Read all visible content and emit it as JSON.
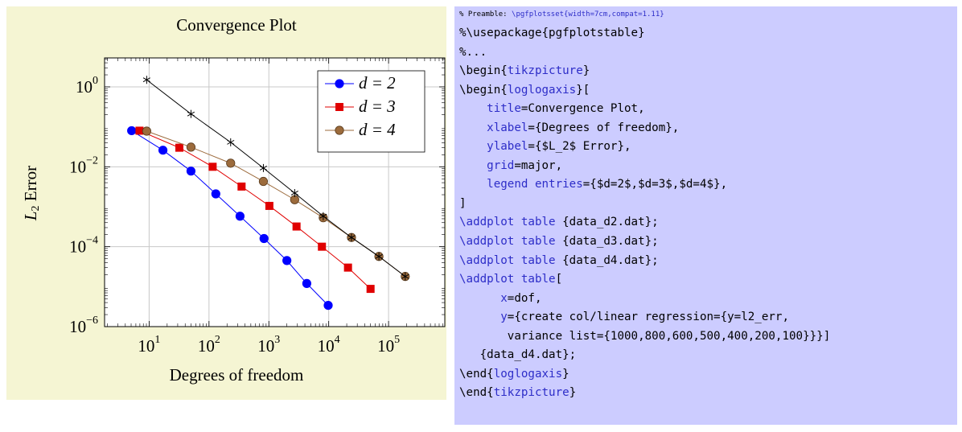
{
  "chart_data": {
    "type": "line",
    "title": "Convergence Plot",
    "xlabel": "Degrees of freedom",
    "ylabel": [
      "L",
      "2",
      " Error"
    ],
    "xlog": true,
    "ylog": true,
    "grid": "major",
    "xlim": [
      1.8,
      870000
    ],
    "ylim": [
      1e-06,
      5.3
    ],
    "xticks": [
      {
        "value": 10,
        "label": "10",
        "exponent": "1"
      },
      {
        "value": 100,
        "label": "10",
        "exponent": "2"
      },
      {
        "value": 1000,
        "label": "10",
        "exponent": "3"
      },
      {
        "value": 10000,
        "label": "10",
        "exponent": "4"
      },
      {
        "value": 100000,
        "label": "10",
        "exponent": "5"
      }
    ],
    "yticks": [
      {
        "value": 1e-06,
        "label": "10",
        "exponent": "−6"
      },
      {
        "value": 0.0001,
        "label": "10",
        "exponent": "−4"
      },
      {
        "value": 0.01,
        "label": "10",
        "exponent": "−2"
      },
      {
        "value": 1,
        "label": "10",
        "exponent": "0"
      }
    ],
    "legend": "top-right",
    "series": [
      {
        "name": "d = 2",
        "color": "#0000ff",
        "marker": "circle",
        "x": [
          5.1,
          17,
          50,
          130,
          330,
          830,
          2000,
          4300,
          9800
        ],
        "values": [
          0.08,
          0.026,
          0.0078,
          0.0021,
          0.00058,
          0.00016,
          4.5e-05,
          1.2e-05,
          3.4e-06
        ]
      },
      {
        "name": "d = 3",
        "color": "#e00000",
        "marker": "square",
        "x": [
          6.9,
          32,
          115,
          350,
          1020,
          2900,
          7700,
          21000,
          50000
        ],
        "values": [
          0.08,
          0.03,
          0.01,
          0.0032,
          0.00105,
          0.00032,
          0.0001,
          3e-05,
          8.8e-06
        ]
      },
      {
        "name": "d = 4",
        "color": "#9c6b3c",
        "marker": "circle",
        "x": [
          9.1,
          50,
          230,
          810,
          2700,
          8100,
          24000,
          69000,
          190000
        ],
        "values": [
          0.078,
          0.031,
          0.0123,
          0.0043,
          0.0015,
          0.00053,
          0.00017,
          5.7e-05,
          1.8e-05
        ]
      },
      {
        "color": "#000000",
        "marker": "star",
        "x": [
          9.1,
          50,
          230,
          810,
          2700,
          8100,
          24000,
          69000,
          190000
        ],
        "values": [
          1.5,
          0.21,
          0.041,
          0.0093,
          0.0022,
          0.00058,
          0.00017,
          5.7e-05,
          1.8e-05
        ]
      }
    ]
  },
  "code": {
    "keyword_color": "#2d2dc8",
    "lines": [
      [
        "% Preamble: ",
        {
          "text": "\\pgfplotsset{width=7cm,compat=1.11}"
        }
      ],
      [
        "%\\usepackage{pgfplotstable}"
      ],
      [
        "%..."
      ],
      [
        "\\begin{",
        {
          "text": "tikzpicture"
        },
        "}"
      ],
      [
        "\\begin{",
        {
          "text": "loglogaxis"
        },
        "}["
      ],
      [
        "    ",
        {
          "text": "title"
        },
        "=Convergence Plot,"
      ],
      [
        "    ",
        {
          "text": "xlabel"
        },
        "={Degrees of freedom},"
      ],
      [
        "    ",
        {
          "text": "ylabel"
        },
        "={$L_2$ Error},"
      ],
      [
        "    ",
        {
          "text": "grid"
        },
        "=major,"
      ],
      [
        "    ",
        {
          "text": "legend entries"
        },
        "={$d=2$,$d=3$,$d=4$},"
      ],
      [
        "]"
      ],
      [
        {
          "text": "\\addplot table"
        },
        " {data_d2.dat};"
      ],
      [
        {
          "text": "\\addplot table"
        },
        " {data_d3.dat};"
      ],
      [
        {
          "text": "\\addplot table"
        },
        " {data_d4.dat};"
      ],
      [
        {
          "text": "\\addplot table"
        },
        "["
      ],
      [
        "      ",
        {
          "text": "x"
        },
        "=dof,"
      ],
      [
        "      ",
        {
          "text": "y"
        },
        "={create col/linear regression={y=l2_err,"
      ],
      [
        "       variance list={1000,800,600,500,400,200,100}}}]"
      ],
      [
        "   {data_d4.dat};"
      ],
      [
        "\\end{",
        {
          "text": "loglogaxis"
        },
        "}"
      ],
      [
        "\\end{",
        {
          "text": "tikzpicture"
        },
        "}"
      ]
    ]
  }
}
